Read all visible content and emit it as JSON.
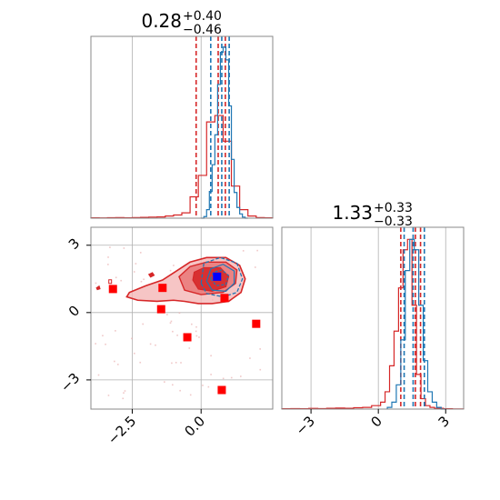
{
  "chart_data": [
    {
      "type": "step-histogram",
      "panel": "param1-marginal",
      "title_value": "0.28",
      "title_plus": "+0.40",
      "title_minus": "−0.46",
      "xlim": [
        -4.0,
        2.6
      ],
      "grid": true,
      "series": [
        {
          "color": "#d62728",
          "bin_edges": [
            -4.0,
            -3.7,
            -3.4,
            -3.1,
            -2.8,
            -2.5,
            -2.2,
            -1.9,
            -1.6,
            -1.3,
            -1.0,
            -0.7,
            -0.4,
            -0.1,
            0.2,
            0.5,
            0.8,
            1.1,
            1.4,
            1.7,
            2.0,
            2.3,
            2.6
          ],
          "counts": [
            0.3,
            0.2,
            0.4,
            0.5,
            0.3,
            0.6,
            0.8,
            1.0,
            1.2,
            2.0,
            3.0,
            5.0,
            20.0,
            40.0,
            90.0,
            96.0,
            72.0,
            30.0,
            8.0,
            2.0,
            0.5,
            0.3
          ],
          "lines": [
            -0.18,
            0.62,
            0.88
          ]
        },
        {
          "color": "#1f77b4",
          "bin_edges": [
            0.0,
            0.1,
            0.2,
            0.3,
            0.4,
            0.5,
            0.6,
            0.7,
            0.8,
            0.9,
            1.0,
            1.1,
            1.2,
            1.3,
            1.4,
            1.5,
            1.6,
            1.7
          ],
          "counts": [
            0.0,
            1.5,
            8.0,
            25.0,
            50.0,
            78.0,
            125.0,
            155.0,
            160.0,
            148.0,
            105.0,
            55.0,
            24.0,
            10.0,
            4.0,
            1.0,
            0.0
          ],
          "lines": [
            0.35,
            0.75,
            1.02
          ]
        }
      ],
      "ymax": 170
    },
    {
      "type": "contour-scatter",
      "panel": "joint",
      "xlim": [
        -4.0,
        2.6
      ],
      "ylim": [
        -4.3,
        3.8
      ],
      "xticks": [
        -2.5,
        0.0
      ],
      "xtick_labels": [
        "−2.5",
        "0.0"
      ],
      "yticks": [
        -3,
        0,
        3
      ],
      "ytick_labels": [
        "−3",
        "0",
        "3"
      ],
      "grid": true,
      "red_squares": [
        {
          "x": -3.2,
          "y": 1.05
        },
        {
          "x": -1.4,
          "y": 1.1
        },
        {
          "x": -1.45,
          "y": 0.15
        },
        {
          "x": -0.5,
          "y": -1.1
        },
        {
          "x": 0.85,
          "y": 0.65
        },
        {
          "x": 2.0,
          "y": -0.5
        },
        {
          "x": 0.75,
          "y": -3.45
        }
      ],
      "blue_square": {
        "x": 0.58,
        "y": 1.6
      },
      "color_outer": "#d62728",
      "color_inner": "#1f77b4",
      "marker_red": "#ff0000",
      "marker_blue": "#0000ff"
    },
    {
      "type": "step-histogram",
      "panel": "param2-marginal",
      "title_value": "1.33",
      "title_plus": "+0.33",
      "title_minus": "−0.33",
      "xlim": [
        -4.3,
        3.8
      ],
      "xticks": [
        -3,
        0,
        3
      ],
      "xtick_labels": [
        "−3",
        "0",
        "3"
      ],
      "grid": true,
      "series": [
        {
          "color": "#d62728",
          "bin_edges": [
            -4.3,
            -3.9,
            -3.5,
            -3.1,
            -2.7,
            -2.3,
            -1.9,
            -1.5,
            -1.1,
            -0.7,
            -0.3,
            0.1,
            0.3,
            0.5,
            0.7,
            0.9,
            1.1,
            1.3,
            1.5,
            1.7,
            1.9,
            2.1,
            2.3,
            2.5,
            2.9,
            3.3,
            3.8
          ],
          "counts": [
            0.2,
            0.3,
            0.2,
            0.4,
            0.3,
            0.5,
            0.6,
            0.5,
            0.8,
            1.0,
            2.0,
            4.0,
            10.0,
            25.0,
            45.0,
            70.0,
            92.0,
            98.0,
            60.0,
            20.0,
            6.0,
            2.0,
            1.0,
            0.5,
            0.2,
            0.1
          ],
          "lines": [
            1.0,
            1.65,
            1.88
          ]
        },
        {
          "color": "#1f77b4",
          "bin_edges": [
            0.4,
            0.6,
            0.8,
            1.0,
            1.2,
            1.4,
            1.6,
            1.8,
            2.0,
            2.2,
            2.4,
            2.6,
            2.8,
            3.0
          ],
          "counts": [
            1.0,
            4.0,
            14.0,
            40.0,
            80.0,
            98.0,
            92.0,
            60.0,
            28.0,
            10.0,
            4.0,
            1.0,
            0.0
          ],
          "lines": [
            1.15,
            1.55,
            2.05
          ]
        }
      ],
      "ymax": 105
    }
  ]
}
